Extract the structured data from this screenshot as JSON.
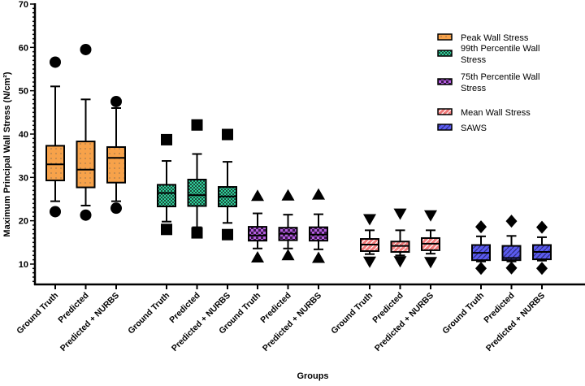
{
  "chart_data": {
    "type": "box",
    "title": "",
    "xlabel": "Groups",
    "ylabel": "Maximum Principal Wall Stress (N/cm²)",
    "ylim": [
      5,
      70
    ],
    "yticks": [
      10,
      20,
      30,
      40,
      50,
      60,
      70
    ],
    "grid": false,
    "legend_position": "top-right",
    "categories": [
      "Ground Truth",
      "Predicted",
      "Predicted + NURBS"
    ],
    "series": [
      {
        "name": "Peak Wall Stress",
        "color": "#f7a24a",
        "marker": "circle",
        "boxes": [
          {
            "whisker_low": 24.5,
            "q1": 29.3,
            "median": 33.0,
            "q3": 37.3,
            "whisker_high": 51.0,
            "outliers": [
              56.6,
              22.1
            ]
          },
          {
            "whisker_low": 23.5,
            "q1": 27.7,
            "median": 31.8,
            "q3": 38.3,
            "whisker_high": 48.0,
            "outliers": [
              59.5,
              21.3
            ]
          },
          {
            "whisker_low": 24.5,
            "q1": 28.8,
            "median": 34.5,
            "q3": 37.0,
            "whisker_high": 46.0,
            "outliers": [
              47.5,
              22.9
            ]
          }
        ]
      },
      {
        "name": "99th Percentile Wall Stress",
        "color": "#2fcf9a",
        "marker": "square",
        "boxes": [
          {
            "whisker_low": 19.8,
            "q1": 23.3,
            "median": 26.4,
            "q3": 28.3,
            "whisker_high": 33.8,
            "outliers": [
              38.7,
              18.0
            ]
          },
          {
            "whisker_low": 18.5,
            "q1": 23.4,
            "median": 25.9,
            "q3": 29.5,
            "whisker_high": 35.4,
            "outliers": [
              42.1,
              17.2
            ]
          },
          {
            "whisker_low": 19.5,
            "q1": 23.3,
            "median": 25.6,
            "q3": 27.8,
            "whisker_high": 33.6,
            "outliers": [
              39.9,
              16.8
            ]
          }
        ]
      },
      {
        "name": "75th Percentile Wall Stress",
        "color": "#b45de0",
        "marker": "triangle-up",
        "boxes": [
          {
            "whisker_low": 13.6,
            "q1": 15.4,
            "median": 16.6,
            "q3": 18.6,
            "whisker_high": 21.7,
            "outliers": [
              25.7,
              11.5
            ]
          },
          {
            "whisker_low": 13.6,
            "q1": 15.5,
            "median": 17.0,
            "q3": 18.4,
            "whisker_high": 21.4,
            "outliers": [
              25.8,
              12.0
            ]
          },
          {
            "whisker_low": 13.4,
            "q1": 15.4,
            "median": 16.8,
            "q3": 18.5,
            "whisker_high": 21.5,
            "outliers": [
              26.0,
              11.4
            ]
          }
        ]
      },
      {
        "name": "Mean Wall Stress",
        "color": "#f07a7a",
        "marker": "triangle-down",
        "boxes": [
          {
            "whisker_low": 12.3,
            "q1": 13.0,
            "median": 14.5,
            "q3": 15.8,
            "whisker_high": 17.8,
            "outliers": [
              20.4,
              10.6
            ]
          },
          {
            "whisker_low": 12.0,
            "q1": 12.8,
            "median": 14.2,
            "q3": 15.2,
            "whisker_high": 17.8,
            "outliers": [
              21.7,
              10.7
            ]
          },
          {
            "whisker_low": 12.4,
            "q1": 13.2,
            "median": 14.7,
            "q3": 16.0,
            "whisker_high": 17.8,
            "outliers": [
              21.3,
              10.5
            ]
          }
        ]
      },
      {
        "name": "SAWS",
        "color": "#5b5bf0",
        "marker": "diamond",
        "boxes": [
          {
            "whisker_low": 10.6,
            "q1": 10.9,
            "median": 12.6,
            "q3": 14.4,
            "whisker_high": 16.4,
            "outliers": [
              18.6,
              9.0
            ]
          },
          {
            "whisker_low": 10.6,
            "q1": 10.9,
            "median": 11.4,
            "q3": 14.2,
            "whisker_high": 16.5,
            "outliers": [
              19.9,
              9.1
            ]
          },
          {
            "whisker_low": 10.8,
            "q1": 11.1,
            "median": 12.8,
            "q3": 14.4,
            "whisker_high": 16.2,
            "outliers": [
              18.5,
              9.0
            ]
          }
        ]
      }
    ]
  }
}
